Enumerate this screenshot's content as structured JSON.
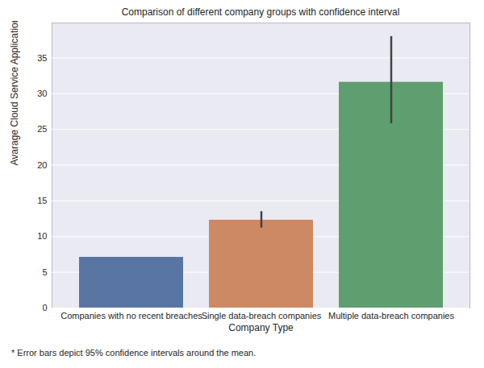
{
  "chart_data": {
    "type": "bar",
    "title": "Comparison of different company groups with confidence interval",
    "x_label": "Company Type",
    "y_label": "Avarage Cloud Service Applications Installed",
    "caption": "* Error bars depict 95% confidence intervals around the mean.",
    "categories": [
      "Companies with no recent breaches",
      "Single data-breach companies",
      "Multiple data-breach companies"
    ],
    "values": [
      7.1,
      12.3,
      31.6
    ],
    "ci_low": [
      null,
      11.2,
      25.8
    ],
    "ci_high": [
      null,
      13.5,
      38.0
    ],
    "colors": [
      "#5975a4",
      "#cc8963",
      "#5f9e6e"
    ],
    "ylim": [
      0,
      39.9
    ],
    "yticks": [
      0,
      5,
      10,
      15,
      20,
      25,
      30,
      35
    ],
    "grid": true
  }
}
